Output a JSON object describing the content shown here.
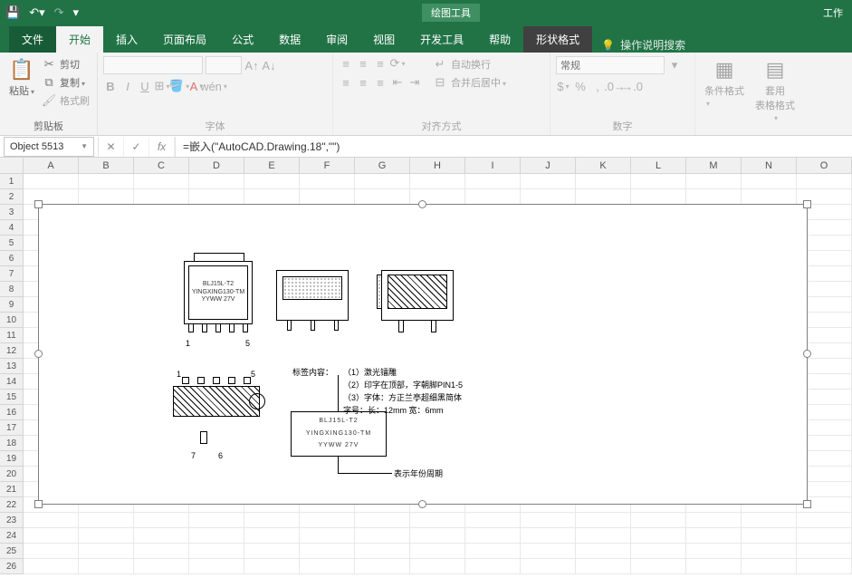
{
  "titlebar": {
    "context_tools": "绘图工具",
    "workbook_hint": "工作"
  },
  "tabs": {
    "file": "文件",
    "home": "开始",
    "insert": "插入",
    "layout": "页面布局",
    "formulas": "公式",
    "data": "数据",
    "review": "审阅",
    "view": "视图",
    "developer": "开发工具",
    "help": "帮助",
    "shapefmt": "形状格式",
    "tellme": "操作说明搜索"
  },
  "ribbon": {
    "clipboard": {
      "paste": "粘贴",
      "cut": "剪切",
      "copy": "复制",
      "painter": "格式刷",
      "group": "剪贴板"
    },
    "font": {
      "group": "字体",
      "bold": "B",
      "italic": "I",
      "underline": "U"
    },
    "align": {
      "group": "对齐方式",
      "wrap": "自动换行",
      "merge": "合并后居中"
    },
    "number": {
      "group": "数字",
      "general": "常规"
    },
    "styles": {
      "cond": "条件格式",
      "table": "套用\n表格格式"
    }
  },
  "fx": {
    "name": "Object 5513",
    "formula": "=嵌入(\"AutoCAD.Drawing.18\",\"\")"
  },
  "cols": [
    "A",
    "B",
    "C",
    "D",
    "E",
    "F",
    "G",
    "H",
    "I",
    "J",
    "K",
    "L",
    "M",
    "N",
    "O"
  ],
  "rows": 26,
  "dwg": {
    "box": {
      "line1": "BLJ15L-T2",
      "line2": "YINGXING130-TM",
      "line3": "YYWW   27V"
    },
    "comp_box": {
      "line1": "BLJ15L-T2",
      "line2": "YINGXING130-TM",
      "line3": "YYWW   27V"
    },
    "pins": {
      "p1": "1",
      "p5": "5",
      "p6": "6",
      "p7": "7"
    },
    "notes": {
      "title": "标签内容：",
      "n1": "（1）激光镭雕",
      "n2": "（2）印字在顶部，字朝脚PIN1-5",
      "n3": "（3）字体：方正兰亭超细黑简体",
      "n4": "        字号：长：12mm 宽：6mm",
      "footer": "表示年份周期"
    }
  }
}
